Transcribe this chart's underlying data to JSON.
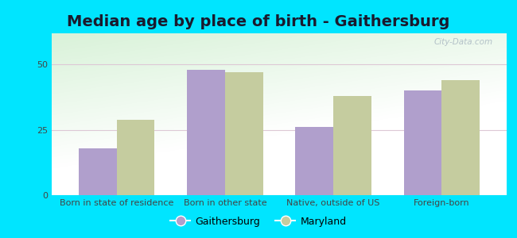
{
  "title": "Median age by place of birth - Gaithersburg",
  "categories": [
    "Born in state of residence",
    "Born in other state",
    "Native, outside of US",
    "Foreign-born"
  ],
  "gaithersburg_values": [
    18,
    48,
    26,
    40
  ],
  "maryland_values": [
    29,
    47,
    38,
    44
  ],
  "gaithersburg_color": "#b09fcc",
  "maryland_color": "#c5cc9f",
  "ylim": [
    0,
    62
  ],
  "yticks": [
    0,
    25,
    50
  ],
  "background_outer": "#00e5ff",
  "grid_color": "#ddc8d5",
  "title_fontsize": 14,
  "tick_fontsize": 8,
  "legend_fontsize": 9,
  "bar_width": 0.35,
  "watermark_text": "City-Data.com"
}
